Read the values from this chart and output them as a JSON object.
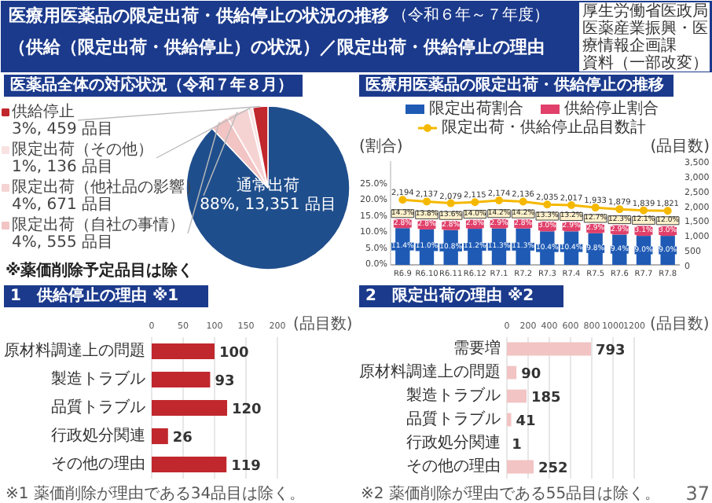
{
  "chart_data": [
    {
      "type": "other",
      "title": "医療用医薬品の限定出荷・供給停止の状況の推移（供給（限定出荷・供給停止）の状況）／限定出荷・供給停止の理由",
      "subtitle": "（令和６年～７年度）",
      "annotations": [
        "厚生労働省医政局",
        "医薬産業振興・医療情報企画課",
        "資料（一部改変）"
      ]
    },
    {
      "type": "pie",
      "title": "医薬品全体の対応状況（令和７年８月）",
      "categories": [
        "通常出荷",
        "限定出荷（自社の事情）",
        "限定出荷（他社品の影響）",
        "限定出荷（その他）",
        "供給停止"
      ],
      "values": [
        13351,
        555,
        671,
        136,
        459
      ],
      "colors": [
        "#1f4e8c",
        "#f2c4c4",
        "#f6d3d3",
        "#f9e2e2",
        "#c0282d"
      ],
      "value_labels": [
        "88%, 13,351 品目",
        "4%, 555 品目",
        "4%, 671 品目",
        "1%, 136 品目",
        "3%, 459 品目"
      ],
      "annotations": [
        "※薬価削除予定品目は除く"
      ],
      "legend": "left"
    },
    {
      "type": "bar",
      "stacked": true,
      "title": "医療用医薬品の限定出荷・供給停止の推移",
      "categories": [
        "R6.9",
        "R6.10",
        "R6.11",
        "R6.12",
        "R7.1",
        "R7.2",
        "R7.3",
        "R7.4",
        "R7.5",
        "R7.6",
        "R7.7",
        "R7.8"
      ],
      "series": [
        {
          "name": "限定出荷割合",
          "color": "#1f5bb5",
          "values": [
            11.4,
            11.0,
            10.8,
            11.2,
            11.3,
            11.3,
            10.4,
            10.4,
            9.8,
            9.4,
            9.0,
            9.0
          ],
          "value_labels": [
            "11.4%",
            "11.0%",
            "10.8%",
            "11.2%",
            "11.3%",
            "11.3%",
            "10.4%",
            "10.4%",
            "9.8%",
            "9.4%",
            "9.0%",
            "9.0%"
          ]
        },
        {
          "name": "供給停止割合",
          "color": "#e0406a",
          "values": [
            2.8,
            2.8,
            2.8,
            2.8,
            2.9,
            2.8,
            3.0,
            2.9,
            2.9,
            2.9,
            3.1,
            3.0
          ],
          "value_labels": [
            "2.8%",
            "2.8%",
            "2.8%",
            "2.8%",
            "2.9%",
            "2.8%",
            "3.0%",
            "2.9%",
            "2.9%",
            "2.9%",
            "3.1%",
            "3.0%"
          ]
        },
        {
          "name": "限定出荷・供給停止品目数計",
          "type": "line",
          "axis": "y2",
          "marker": "circle",
          "color": "#f5b800",
          "values": [
            2194,
            2137,
            2079,
            2115,
            2174,
            2136,
            2035,
            2017,
            1933,
            1879,
            1839,
            1821
          ],
          "value_labels": [
            "2,194",
            "2,137",
            "2,079",
            "2,115",
            "2,174",
            "2,136",
            "2,035",
            "2,017",
            "1,933",
            "1,879",
            "1,839",
            "1,821"
          ]
        }
      ],
      "totals": [
        "14.3%",
        "13.8%",
        "13.6%",
        "14.0%",
        "14.2%",
        "14.2%",
        "13.3%",
        "13.2%",
        "12.7%",
        "12.3%",
        "12.1%",
        "12.0%"
      ],
      "ylim": [
        0,
        32.2
      ],
      "yticks": [
        {
          "value": 0,
          "label": "0.0%"
        },
        {
          "value": 5,
          "label": "5.0%"
        },
        {
          "value": 10,
          "label": "10.0%"
        },
        {
          "value": 15,
          "label": "15.0%"
        },
        {
          "value": 20,
          "label": "20.0%"
        },
        {
          "value": 25,
          "label": "25.0%"
        }
      ],
      "y2lim": [
        0,
        3500
      ],
      "y2ticks": [
        0,
        500,
        {
          "value": 1000,
          "label": "1,000"
        },
        {
          "value": 1500,
          "label": "1,500"
        },
        {
          "value": 2000,
          "label": "2,000"
        },
        {
          "value": 2500,
          "label": "2,500"
        },
        {
          "value": 3000,
          "label": "3,000"
        },
        {
          "value": 3500,
          "label": "3,500"
        }
      ],
      "ylabel": "(割合)",
      "y2label": "(品目数)",
      "legend": "top",
      "grid": false
    },
    {
      "type": "bar",
      "orientation": "horizontal",
      "title": "1　供給停止の理由 ※1",
      "categories": [
        "原材料調達上の問題",
        "製造トラブル",
        "品質トラブル",
        "行政処分関連",
        "その他の理由"
      ],
      "values": [
        100,
        93,
        120,
        26,
        119
      ],
      "color": "#c0282d",
      "xlim": [
        0,
        200
      ],
      "xticks": [
        0,
        50,
        100,
        150,
        200
      ],
      "xlabel": "(品目数)",
      "grid": "x",
      "data_labels": true,
      "annotations": [
        "※1 薬価削除が理由である34品目は除く。"
      ]
    },
    {
      "type": "bar",
      "orientation": "horizontal",
      "title": "2　限定出荷の理由 ※2",
      "categories": [
        "需要増",
        "原材料調達上の問題",
        "製造トラブル",
        "品質トラブル",
        "行政処分関連",
        "その他の理由"
      ],
      "values": [
        793,
        90,
        185,
        41,
        1,
        252
      ],
      "color": "#f2c4c4",
      "xlim": [
        0,
        1200
      ],
      "xticks": [
        0,
        200,
        400,
        600,
        800,
        1000,
        1200
      ],
      "xlabel": "(品目数)",
      "grid": "x",
      "data_labels": true,
      "annotations": [
        "※2 薬価削除が理由である55品目は除く。",
        "37"
      ]
    }
  ]
}
